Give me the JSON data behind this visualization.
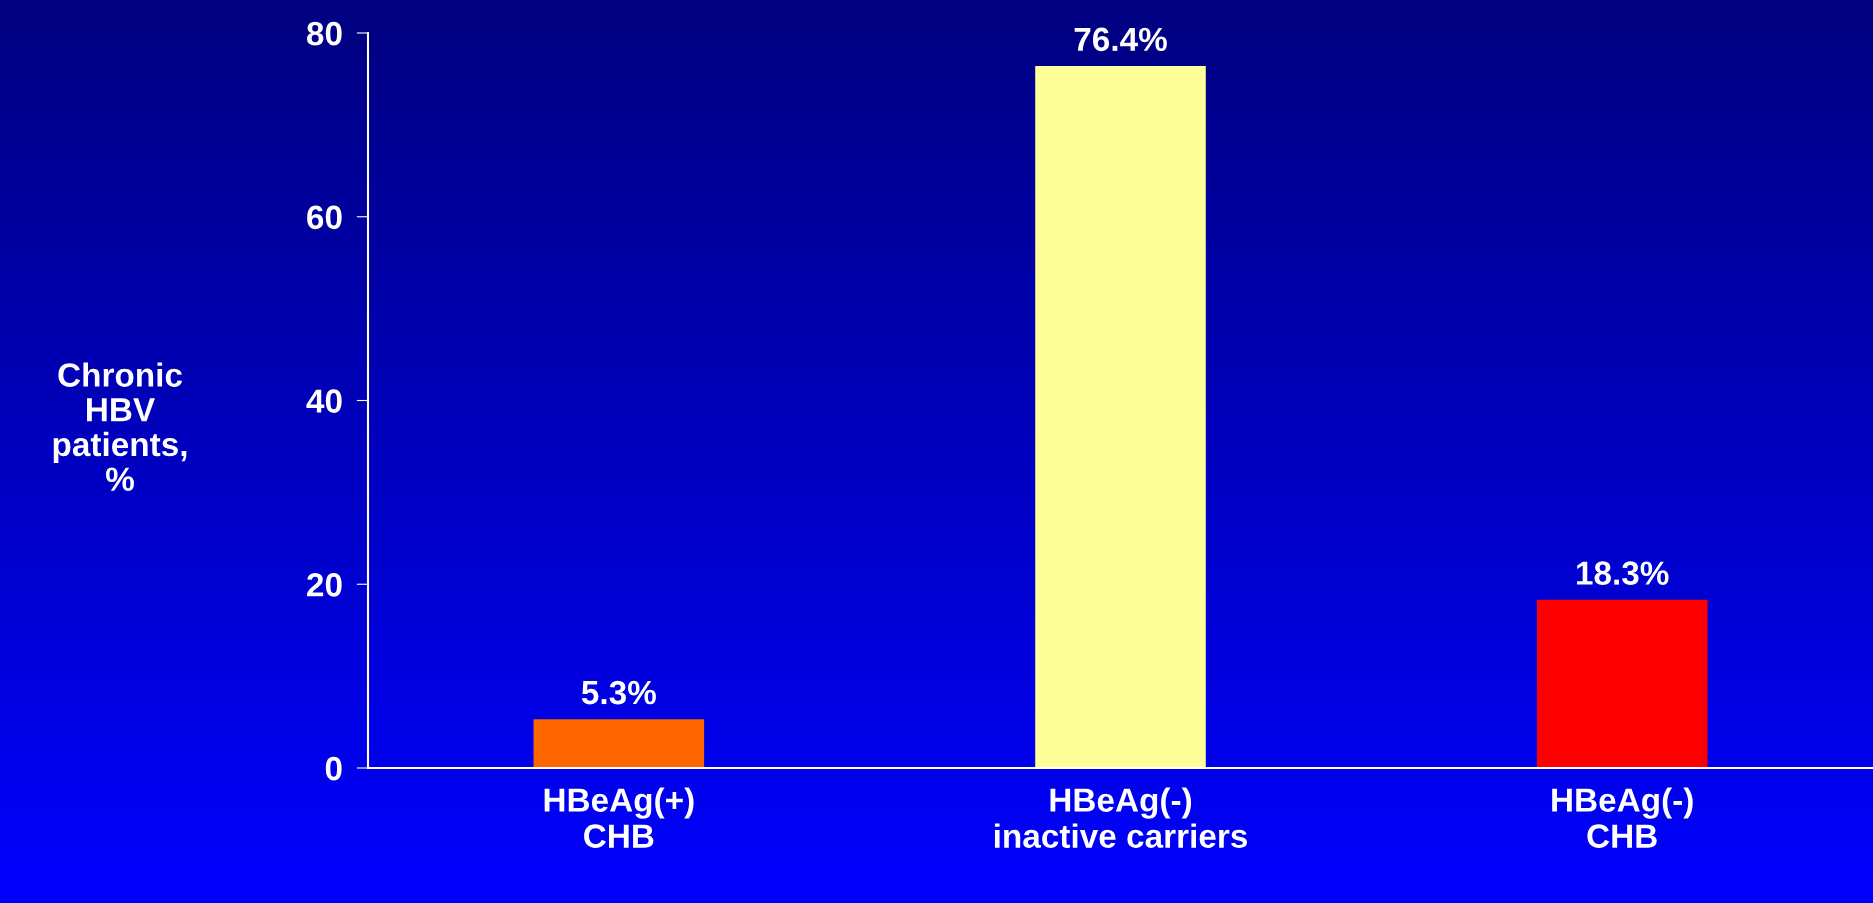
{
  "chart_data": {
    "type": "bar",
    "categories": [
      "HBeAg(+)\nCHB",
      "HBeAg(-)\ninactive carriers",
      "HBeAg(-)\nCHB"
    ],
    "values": [
      5.3,
      76.4,
      18.3
    ],
    "colors": [
      "#ff6600",
      "#ffff99",
      "#ff0000"
    ],
    "value_labels": [
      "5.3%",
      "76.4%",
      "18.3%"
    ],
    "ylabel": "Chronic\nHBV\npatients,\n%",
    "ylim": [
      0,
      80
    ],
    "yticks": [
      0,
      20,
      40,
      60,
      80
    ],
    "grid": false,
    "legend": false
  }
}
